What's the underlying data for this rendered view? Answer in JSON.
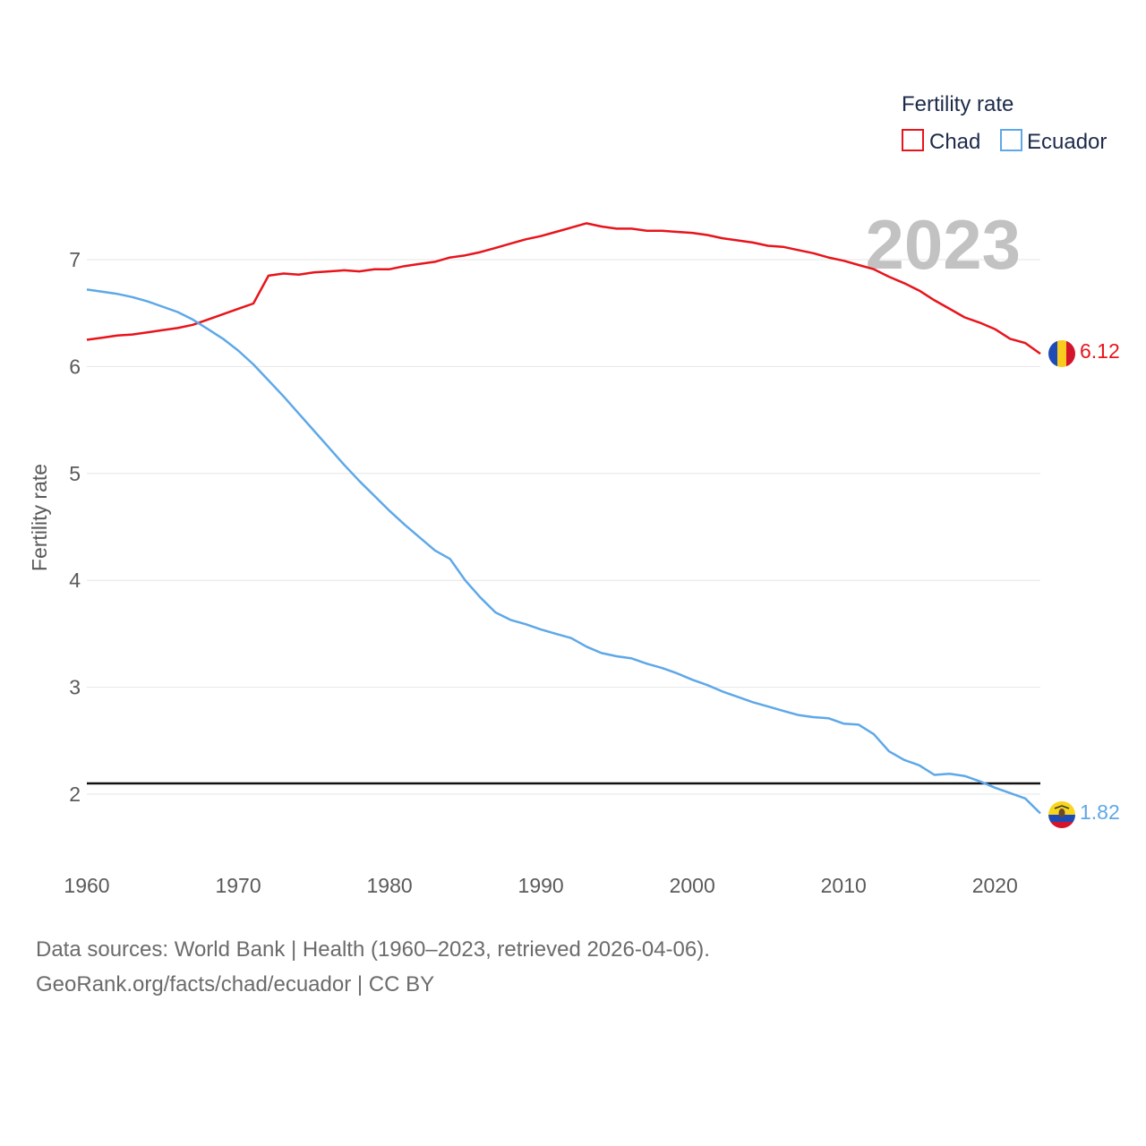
{
  "legend": {
    "title": "Fertility rate",
    "items": [
      {
        "name": "Chad",
        "color": "#e8141b"
      },
      {
        "name": "Ecuador",
        "color": "#5ea8e8"
      }
    ]
  },
  "year_label": "2023",
  "end_labels": {
    "chad": "6.12",
    "ecuador": "1.82"
  },
  "footer": {
    "line1": "Data sources: World Bank | Health (1960–2023, retrieved 2026-04-06).",
    "line2": "GeoRank.org/facts/chad/ecuador | CC BY"
  },
  "chart_data": {
    "type": "line",
    "title": "",
    "xlabel": "",
    "ylabel": "Fertility rate",
    "xlim": [
      1960,
      2023
    ],
    "ylim": [
      1.5,
      7.7
    ],
    "xticks": [
      1960,
      1970,
      1980,
      1990,
      2000,
      2010,
      2020
    ],
    "yticks": [
      2,
      3,
      4,
      5,
      6,
      7
    ],
    "grid": true,
    "legend_position": "top-right",
    "reference_line": {
      "y": 2.1
    },
    "x": [
      1960,
      1961,
      1962,
      1963,
      1964,
      1965,
      1966,
      1967,
      1968,
      1969,
      1970,
      1971,
      1972,
      1973,
      1974,
      1975,
      1976,
      1977,
      1978,
      1979,
      1980,
      1981,
      1982,
      1983,
      1984,
      1985,
      1986,
      1987,
      1988,
      1989,
      1990,
      1991,
      1992,
      1993,
      1994,
      1995,
      1996,
      1997,
      1998,
      1999,
      2000,
      2001,
      2002,
      2003,
      2004,
      2005,
      2006,
      2007,
      2008,
      2009,
      2010,
      2011,
      2012,
      2013,
      2014,
      2015,
      2016,
      2017,
      2018,
      2019,
      2020,
      2021,
      2022,
      2023
    ],
    "series": [
      {
        "name": "Chad",
        "color": "#e8141b",
        "values": [
          6.25,
          6.27,
          6.29,
          6.3,
          6.32,
          6.34,
          6.36,
          6.39,
          6.44,
          6.49,
          6.54,
          6.59,
          6.85,
          6.87,
          6.86,
          6.88,
          6.89,
          6.9,
          6.89,
          6.91,
          6.91,
          6.94,
          6.96,
          6.98,
          7.02,
          7.04,
          7.07,
          7.11,
          7.15,
          7.19,
          7.22,
          7.26,
          7.3,
          7.34,
          7.31,
          7.29,
          7.29,
          7.27,
          7.27,
          7.26,
          7.25,
          7.23,
          7.2,
          7.18,
          7.16,
          7.13,
          7.12,
          7.09,
          7.06,
          7.02,
          6.99,
          6.95,
          6.91,
          6.84,
          6.78,
          6.71,
          6.62,
          6.54,
          6.46,
          6.41,
          6.35,
          6.26,
          6.22,
          6.12
        ]
      },
      {
        "name": "Ecuador",
        "color": "#5ea8e8",
        "values": [
          6.72,
          6.7,
          6.68,
          6.65,
          6.61,
          6.56,
          6.51,
          6.44,
          6.35,
          6.26,
          6.15,
          6.02,
          5.87,
          5.72,
          5.56,
          5.4,
          5.24,
          5.08,
          4.93,
          4.79,
          4.65,
          4.52,
          4.4,
          4.28,
          4.2,
          4.0,
          3.84,
          3.7,
          3.63,
          3.59,
          3.54,
          3.5,
          3.46,
          3.38,
          3.32,
          3.29,
          3.27,
          3.22,
          3.18,
          3.13,
          3.07,
          3.02,
          2.96,
          2.91,
          2.86,
          2.82,
          2.78,
          2.74,
          2.72,
          2.71,
          2.66,
          2.65,
          2.56,
          2.4,
          2.32,
          2.27,
          2.18,
          2.19,
          2.17,
          2.12,
          2.06,
          2.01,
          1.96,
          1.82
        ]
      }
    ]
  }
}
